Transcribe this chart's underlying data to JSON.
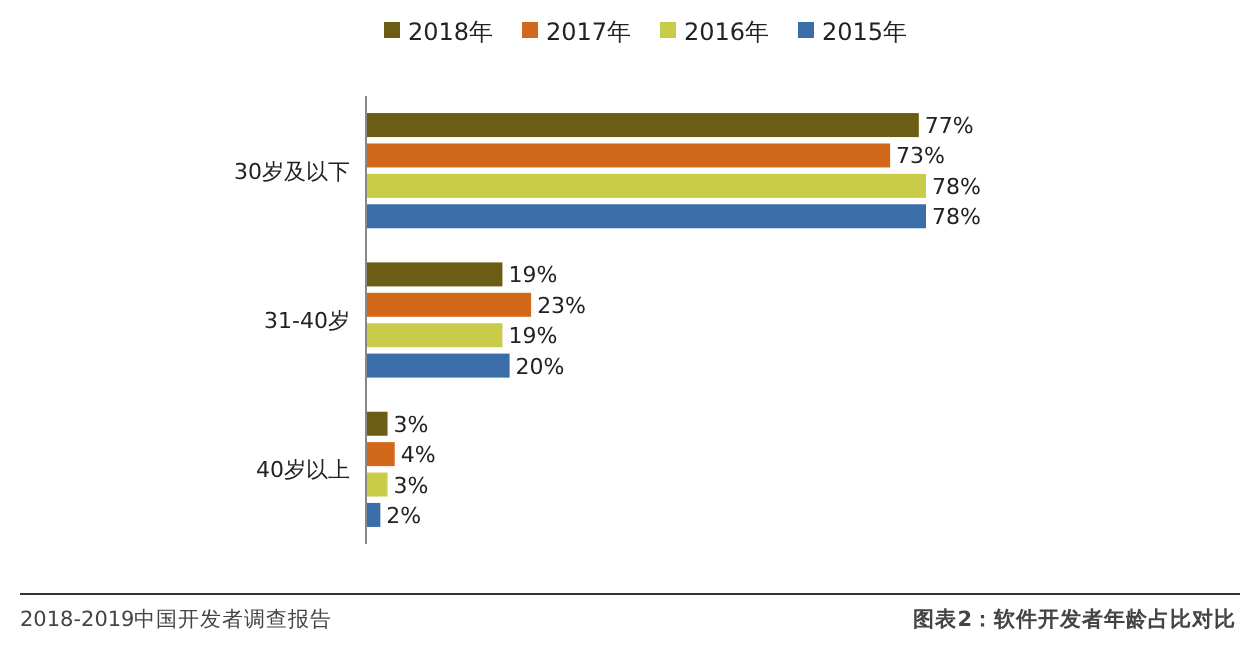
{
  "chart_data": {
    "type": "bar",
    "orientation": "horizontal",
    "categories": [
      "30岁及以下",
      "31-40岁",
      "40岁以上"
    ],
    "series": [
      {
        "name": "2018年",
        "color": "#6b5e14",
        "values": [
          77,
          19,
          3
        ],
        "value_labels": [
          "77%",
          "19%",
          "3%"
        ]
      },
      {
        "name": "2017年",
        "color": "#d2691a",
        "values": [
          73,
          23,
          4
        ],
        "value_labels": [
          "73%",
          "23%",
          "4%"
        ]
      },
      {
        "name": "2016年",
        "color": "#c9cc48",
        "values": [
          78,
          19,
          3
        ],
        "value_labels": [
          "78%",
          "19%",
          "3%"
        ]
      },
      {
        "name": "2015年",
        "color": "#3b6ea8",
        "values": [
          78,
          20,
          2
        ],
        "value_labels": [
          "78%",
          "20%",
          "2%"
        ]
      }
    ],
    "legend": "top",
    "annotations": [
      "2018-2019中国开发者调查报告",
      "图表2：软件开发者年龄占比对比"
    ]
  }
}
